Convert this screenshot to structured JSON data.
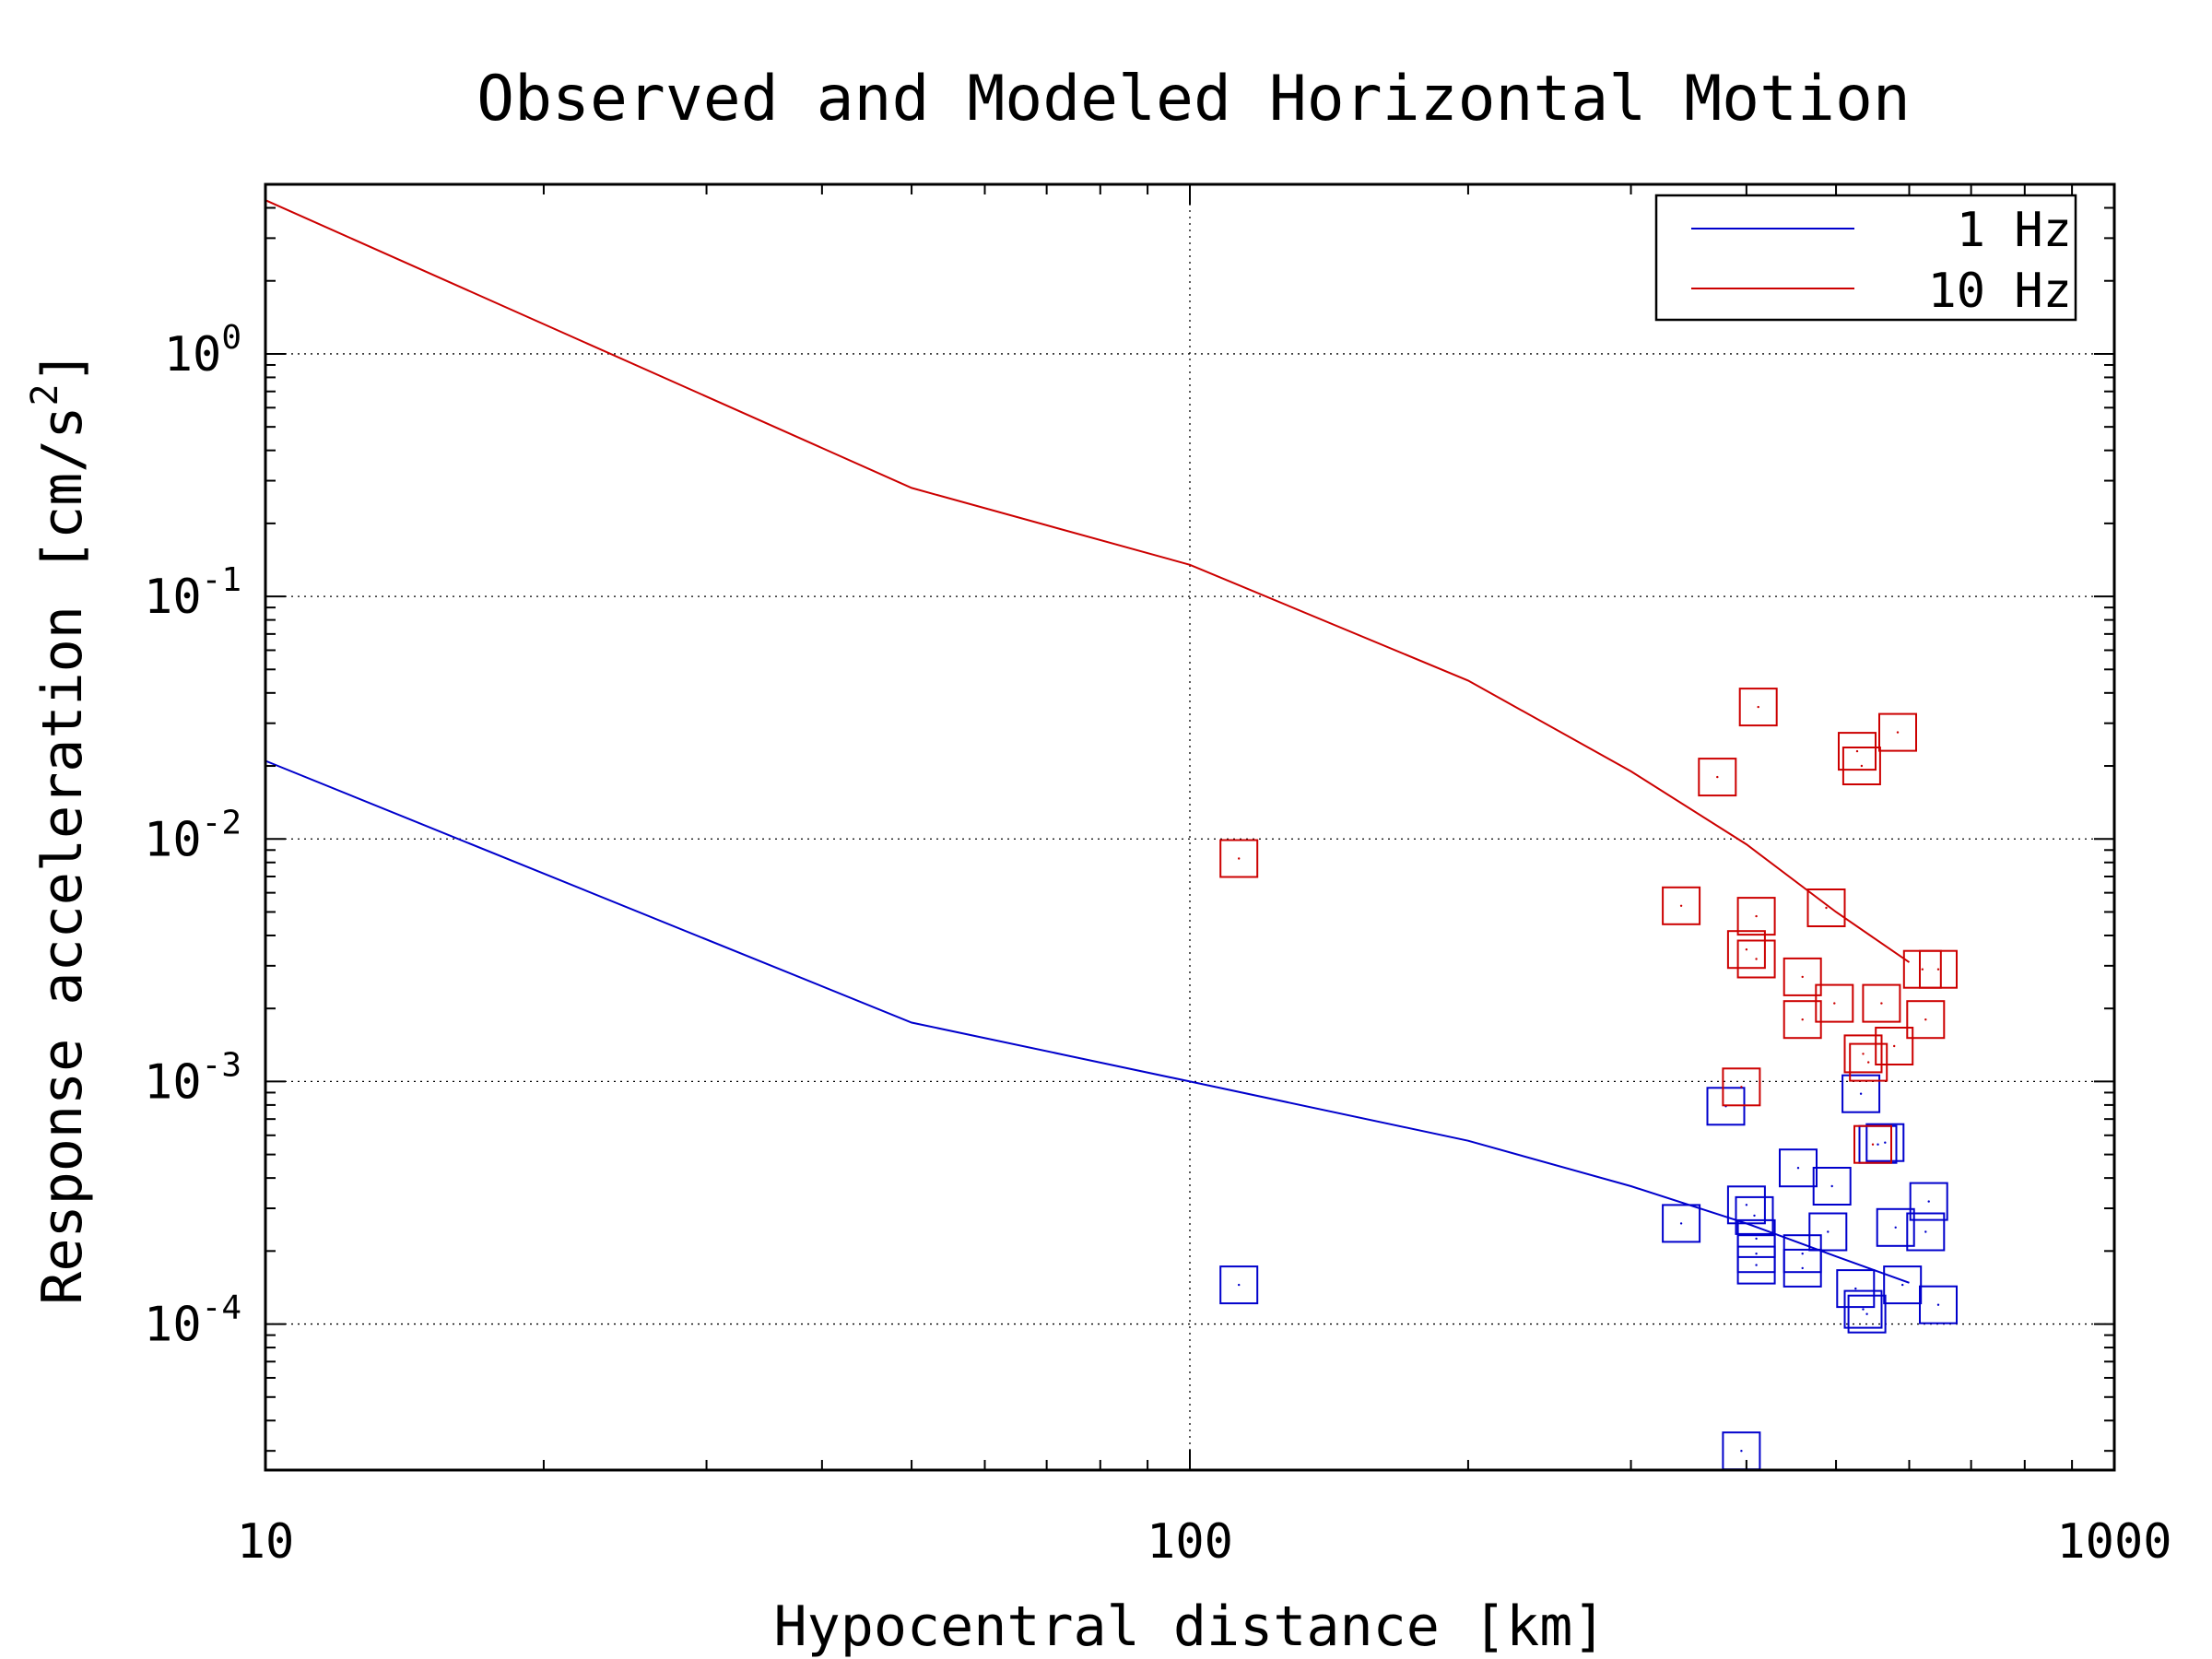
{
  "chart_data": {
    "type": "scatter",
    "title": "Observed and Modeled Horizontal Motion",
    "xlabel": "Hypocentral distance [km]",
    "ylabel": "Response acceleration [cm/s2]",
    "ylabel_parts": {
      "main": "Response acceleration [cm/s",
      "sup": "2",
      "end": "]"
    },
    "x_scale": "log",
    "y_scale": "log",
    "xlim": [
      10,
      1000
    ],
    "ylim": [
      2.5e-05,
      5
    ],
    "x_ticks": [
      {
        "value": 10,
        "label": "10"
      },
      {
        "value": 100,
        "label": "100"
      },
      {
        "value": 1000,
        "label": "1000"
      }
    ],
    "y_ticks": [
      {
        "value": 1,
        "base": "10",
        "exp": "0"
      },
      {
        "value": 0.1,
        "base": "10",
        "exp": "-1"
      },
      {
        "value": 0.01,
        "base": "10",
        "exp": "-2"
      },
      {
        "value": 0.001,
        "base": "10",
        "exp": "-3"
      },
      {
        "value": 0.0001,
        "base": "10",
        "exp": "-4"
      }
    ],
    "grid": true,
    "legend_position": "top-right",
    "series": [
      {
        "name": "1 Hz",
        "color": "#0000cc",
        "model": [
          [
            10,
            0.021
          ],
          [
            50,
            0.00175
          ],
          [
            100,
            0.001
          ],
          [
            200,
            0.00057
          ],
          [
            300,
            0.00037
          ],
          [
            400,
            0.00026
          ],
          [
            500,
            0.00019
          ],
          [
            600,
            0.000148
          ]
        ],
        "observed": [
          [
            113,
            0.000145
          ],
          [
            340,
            0.00026
          ],
          [
            380,
            0.00079
          ],
          [
            395,
            3e-05
          ],
          [
            400,
            0.00031
          ],
          [
            408,
            0.00028
          ],
          [
            410,
            0.000225
          ],
          [
            410,
            0.000195
          ],
          [
            410,
            0.000175
          ],
          [
            455,
            0.00044
          ],
          [
            460,
            0.000195
          ],
          [
            460,
            0.00017
          ],
          [
            495,
            0.00037
          ],
          [
            490,
            0.00024
          ],
          [
            525,
            0.00014
          ],
          [
            535,
            0.000115
          ],
          [
            540,
            0.00011
          ],
          [
            532,
            0.00089
          ],
          [
            555,
            0.00055
          ],
          [
            565,
            0.00056
          ],
          [
            580,
            0.00025
          ],
          [
            590,
            0.000145
          ],
          [
            625,
            0.00024
          ],
          [
            630,
            0.00032
          ],
          [
            645,
            0.00012
          ]
        ]
      },
      {
        "name": "10 Hz",
        "color": "#cc0000",
        "model": [
          [
            10,
            4.3
          ],
          [
            50,
            0.28
          ],
          [
            100,
            0.135
          ],
          [
            200,
            0.045
          ],
          [
            300,
            0.019
          ],
          [
            400,
            0.0095
          ],
          [
            500,
            0.005
          ],
          [
            600,
            0.0031
          ]
        ],
        "observed": [
          [
            113,
            0.0083
          ],
          [
            340,
            0.0053
          ],
          [
            372,
            0.018
          ],
          [
            395,
            0.00095
          ],
          [
            400,
            0.0035
          ],
          [
            410,
            0.0048
          ],
          [
            410,
            0.0032
          ],
          [
            412,
            0.035
          ],
          [
            460,
            0.0027
          ],
          [
            460,
            0.0018
          ],
          [
            488,
            0.0052
          ],
          [
            498,
            0.0021
          ],
          [
            527,
            0.023
          ],
          [
            533,
            0.02
          ],
          [
            535,
            0.0013
          ],
          [
            542,
            0.0012
          ],
          [
            548,
            0.00055
          ],
          [
            560,
            0.0021
          ],
          [
            578,
            0.0014
          ],
          [
            583,
            0.0275
          ],
          [
            620,
            0.0029
          ],
          [
            625,
            0.0018
          ],
          [
            645,
            0.0029
          ]
        ]
      }
    ]
  }
}
